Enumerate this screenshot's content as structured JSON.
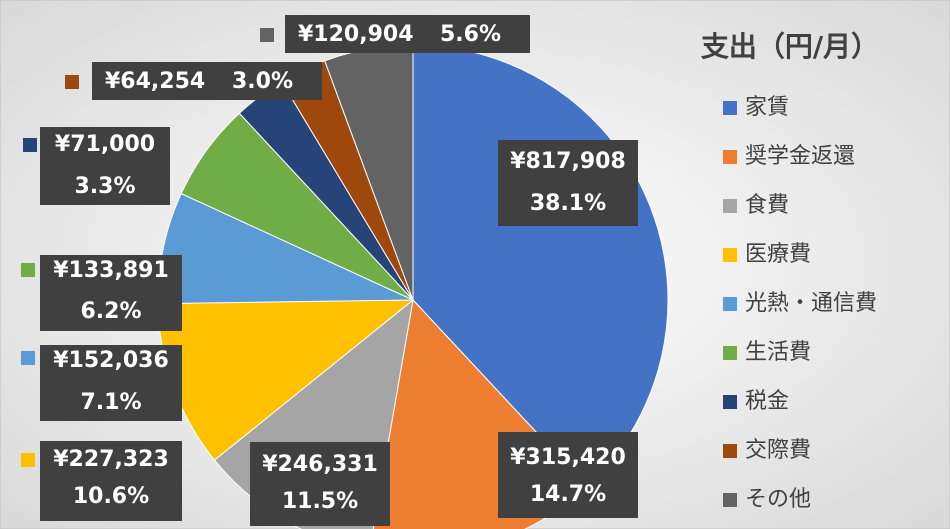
{
  "chart_data": {
    "type": "pie",
    "title": "支出（円/月）",
    "categories": [
      "家賃",
      "奨学金返還",
      "食費",
      "医療費",
      "光熱・通信費",
      "生活費",
      "税金",
      "交際費",
      "その他"
    ],
    "values": [
      817908,
      315420,
      246331,
      227323,
      152036,
      133891,
      71000,
      64254,
      120904
    ],
    "value_labels": [
      "¥817,908",
      "¥315,420",
      "¥246,331",
      "¥227,323",
      "¥152,036",
      "¥133,891",
      "¥71,000",
      "¥64,254",
      "¥120,904"
    ],
    "percents": [
      38.1,
      14.7,
      11.5,
      10.6,
      7.1,
      6.2,
      3.3,
      3.0,
      5.6
    ],
    "percent_labels": [
      "38.1%",
      "14.7%",
      "11.5%",
      "10.6%",
      "7.1%",
      "6.2%",
      "3.3%",
      "3.0%",
      "5.6%"
    ],
    "colors": [
      "#4472c4",
      "#ed7d31",
      "#a5a5a5",
      "#ffc000",
      "#5b9bd5",
      "#70ad47",
      "#264478",
      "#9e480e",
      "#636363"
    ],
    "legend": "right"
  }
}
